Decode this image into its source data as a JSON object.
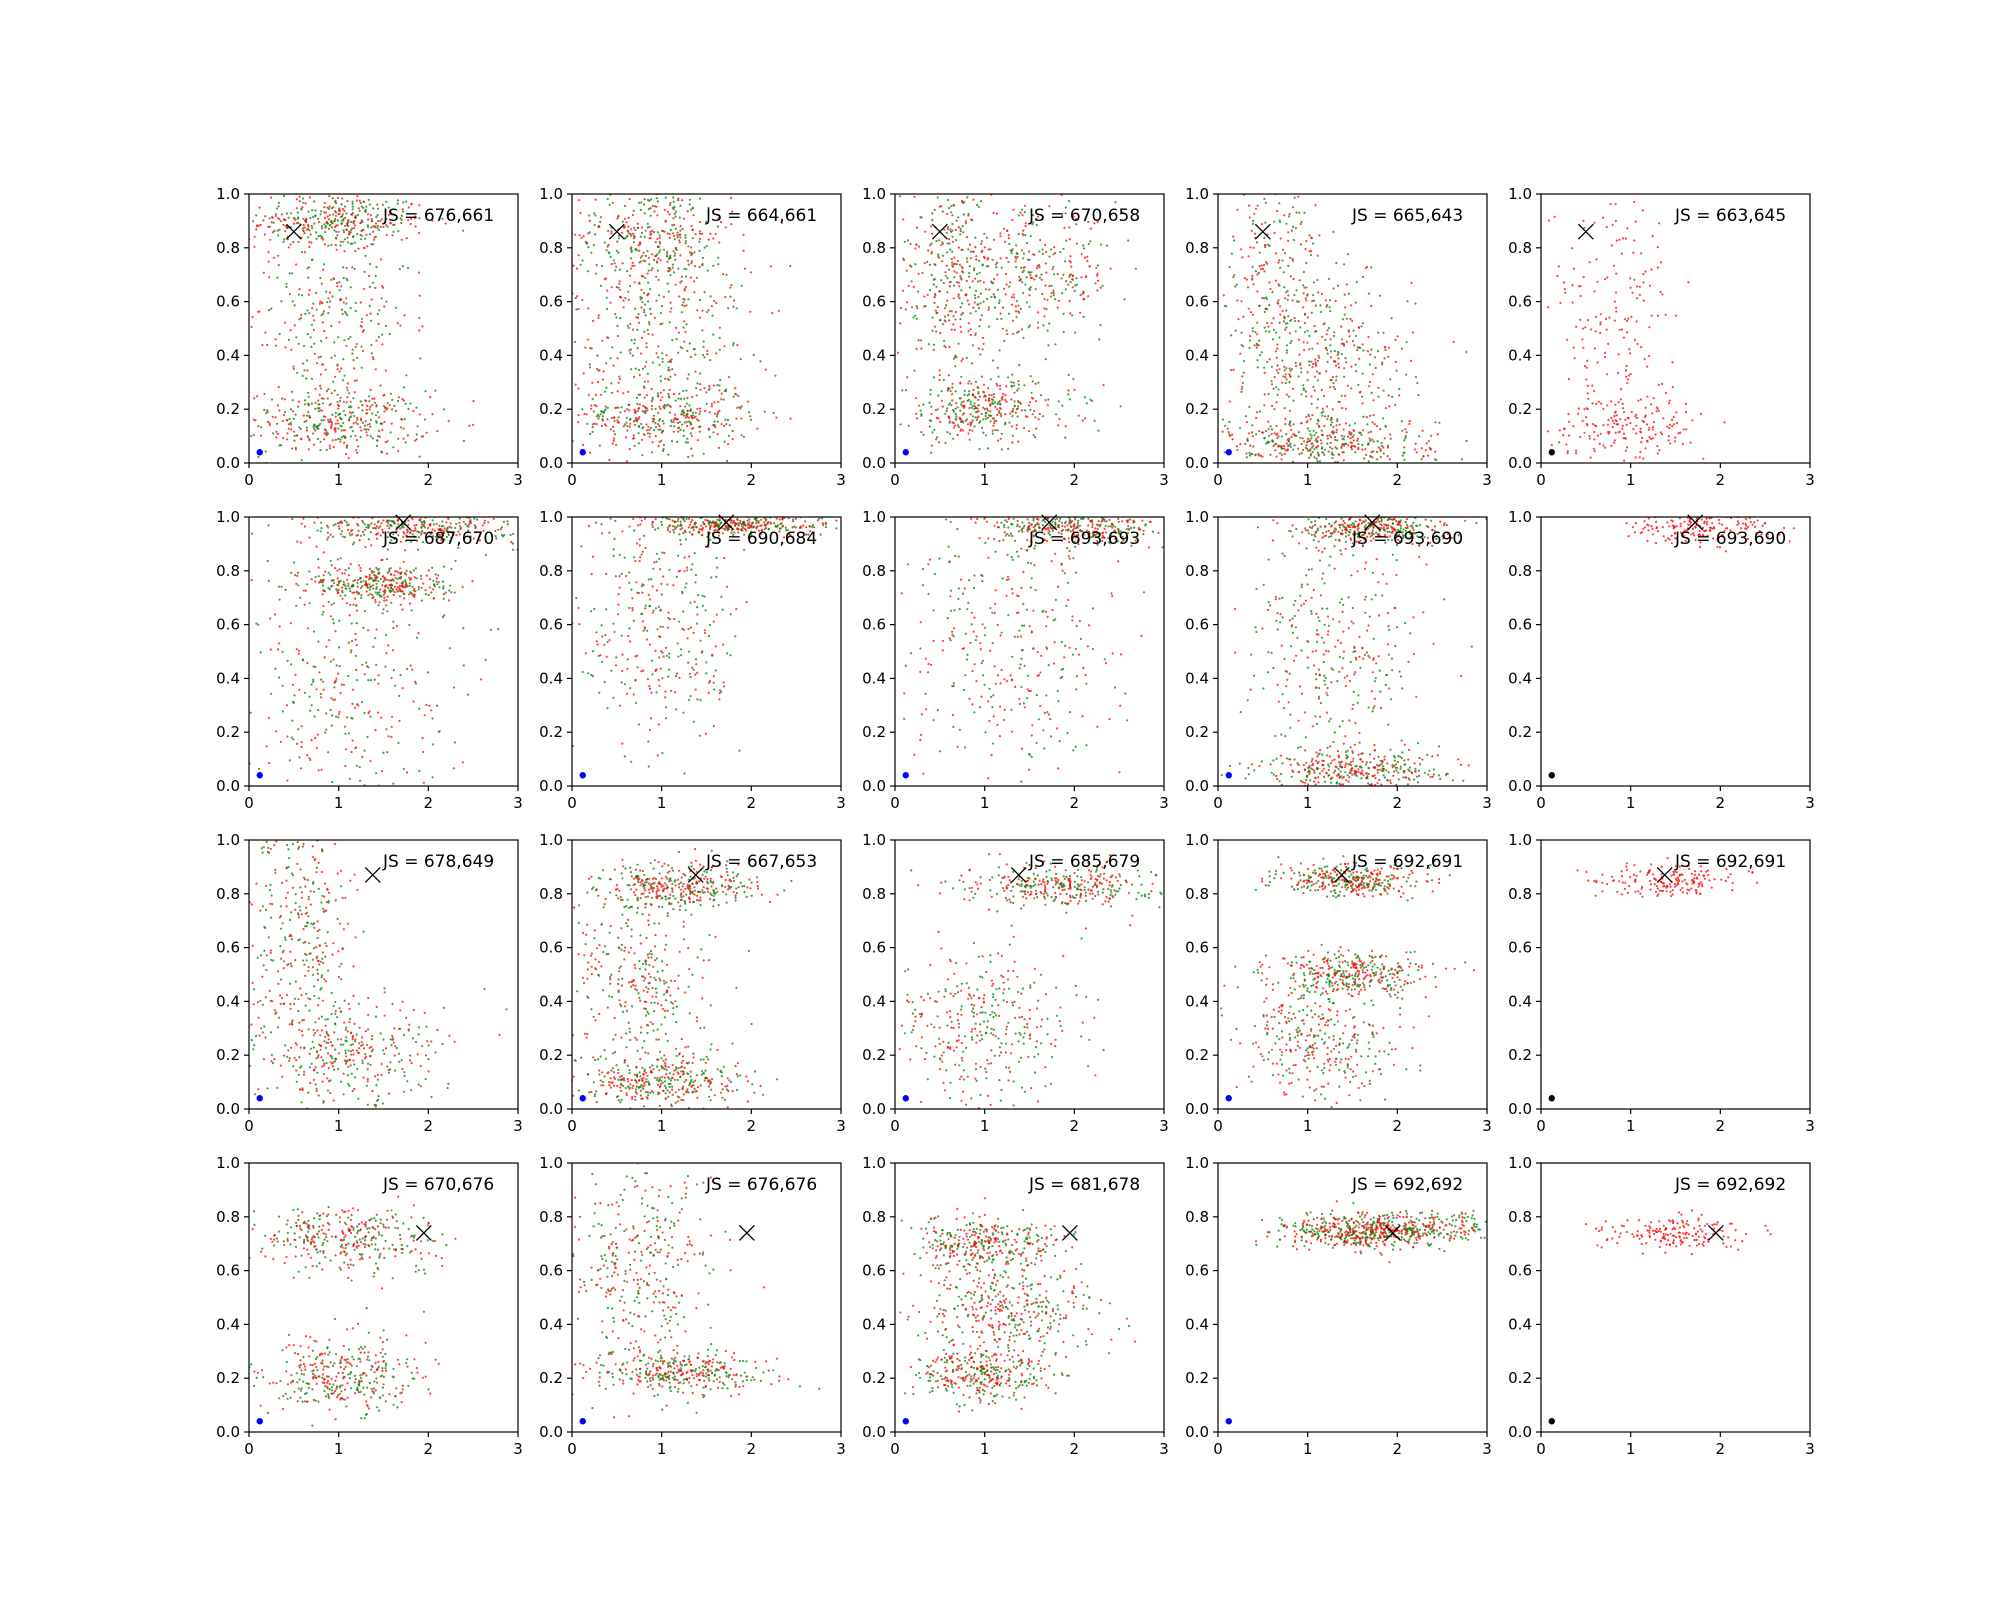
{
  "chart_data": {
    "type": "scatter",
    "layout": {
      "rows": 4,
      "cols": 5
    },
    "shared_axes": {
      "xlim": [
        0,
        3
      ],
      "ylim": [
        0,
        1
      ],
      "xticks": [
        "0",
        "1",
        "2",
        "3"
      ],
      "yticks": [
        "0.0",
        "0.2",
        "0.4",
        "0.6",
        "0.8",
        "1.0"
      ]
    },
    "grid": false,
    "legend": "none",
    "colors": {
      "green": "#008000",
      "red": "#ff0000",
      "blue": "#0000ff",
      "black": "#000000"
    },
    "reference_marker": {
      "symbol": "x",
      "color": "#000000"
    },
    "rows": [
      {
        "target": {
          "x": 0.5,
          "y": 0.86
        },
        "panels": [
          {
            "annotation": "JS = 676,661",
            "green": true,
            "red": true,
            "origin_color": "blue",
            "clusters": [
              {
                "x": 1.0,
                "y": 0.9,
                "sx": 0.5,
                "sy": 0.05
              },
              {
                "x": 1.0,
                "y": 0.15,
                "sx": 0.5,
                "sy": 0.06
              },
              {
                "x": 0.9,
                "y": 0.55,
                "sx": 0.45,
                "sy": 0.25
              }
            ]
          },
          {
            "annotation": "JS = 664,661",
            "green": true,
            "red": true,
            "origin_color": "blue",
            "clusters": [
              {
                "x": 0.9,
                "y": 0.85,
                "sx": 0.45,
                "sy": 0.1
              },
              {
                "x": 1.0,
                "y": 0.17,
                "sx": 0.5,
                "sy": 0.06
              },
              {
                "x": 1.0,
                "y": 0.5,
                "sx": 0.5,
                "sy": 0.2
              }
            ]
          },
          {
            "annotation": "JS = 670,658",
            "green": true,
            "red": true,
            "origin_color": "blue",
            "clusters": [
              {
                "x": 0.6,
                "y": 0.7,
                "sx": 0.3,
                "sy": 0.25
              },
              {
                "x": 1.0,
                "y": 0.2,
                "sx": 0.5,
                "sy": 0.06
              },
              {
                "x": 1.5,
                "y": 0.7,
                "sx": 0.5,
                "sy": 0.12
              }
            ]
          },
          {
            "annotation": "JS = 665,643",
            "green": true,
            "red": true,
            "origin_color": "blue",
            "clusters": [
              {
                "x": 0.6,
                "y": 0.6,
                "sx": 0.3,
                "sy": 0.3
              },
              {
                "x": 1.2,
                "y": 0.07,
                "sx": 0.6,
                "sy": 0.05
              },
              {
                "x": 1.3,
                "y": 0.35,
                "sx": 0.45,
                "sy": 0.18
              }
            ]
          },
          {
            "annotation": "JS = 663,645",
            "green": false,
            "red": true,
            "origin_color": "black",
            "clusters": [
              {
                "x": 0.8,
                "y": 0.55,
                "sx": 0.35,
                "sy": 0.25
              },
              {
                "x": 1.0,
                "y": 0.14,
                "sx": 0.45,
                "sy": 0.06
              }
            ]
          }
        ]
      },
      {
        "target": {
          "x": 1.72,
          "y": 0.98
        },
        "panels": [
          {
            "annotation": "JS = 687,670",
            "green": true,
            "red": true,
            "origin_color": "blue",
            "clusters": [
              {
                "x": 1.8,
                "y": 0.96,
                "sx": 0.6,
                "sy": 0.03
              },
              {
                "x": 1.5,
                "y": 0.75,
                "sx": 0.4,
                "sy": 0.04
              },
              {
                "x": 1.0,
                "y": 0.4,
                "sx": 0.6,
                "sy": 0.25
              }
            ]
          },
          {
            "annotation": "JS = 690,684",
            "green": true,
            "red": true,
            "origin_color": "blue",
            "clusters": [
              {
                "x": 1.8,
                "y": 0.97,
                "sx": 0.55,
                "sy": 0.02
              },
              {
                "x": 1.0,
                "y": 0.6,
                "sx": 0.45,
                "sy": 0.25
              }
            ]
          },
          {
            "annotation": "JS = 693,693",
            "green": true,
            "red": true,
            "origin_color": "blue",
            "clusters": [
              {
                "x": 2.0,
                "y": 0.96,
                "sx": 0.5,
                "sy": 0.03
              },
              {
                "x": 1.3,
                "y": 0.5,
                "sx": 0.6,
                "sy": 0.25
              }
            ]
          },
          {
            "annotation": "JS = 693,690",
            "green": true,
            "red": true,
            "origin_color": "blue",
            "clusters": [
              {
                "x": 1.75,
                "y": 0.96,
                "sx": 0.4,
                "sy": 0.03
              },
              {
                "x": 1.6,
                "y": 0.06,
                "sx": 0.55,
                "sy": 0.04
              },
              {
                "x": 1.3,
                "y": 0.5,
                "sx": 0.5,
                "sy": 0.25
              }
            ]
          },
          {
            "annotation": "JS = 693,690",
            "green": false,
            "red": true,
            "origin_color": "black",
            "clusters": [
              {
                "x": 1.75,
                "y": 0.96,
                "sx": 0.4,
                "sy": 0.03
              }
            ]
          }
        ]
      },
      {
        "target": {
          "x": 1.38,
          "y": 0.87
        },
        "panels": [
          {
            "annotation": "JS = 678,649",
            "green": true,
            "red": true,
            "origin_color": "blue",
            "clusters": [
              {
                "x": 1.1,
                "y": 0.2,
                "sx": 0.55,
                "sy": 0.1
              },
              {
                "x": 0.6,
                "y": 0.65,
                "sx": 0.3,
                "sy": 0.25
              }
            ]
          },
          {
            "annotation": "JS = 667,653",
            "green": true,
            "red": true,
            "origin_color": "blue",
            "clusters": [
              {
                "x": 1.2,
                "y": 0.83,
                "sx": 0.45,
                "sy": 0.04
              },
              {
                "x": 1.0,
                "y": 0.1,
                "sx": 0.45,
                "sy": 0.05
              },
              {
                "x": 0.8,
                "y": 0.45,
                "sx": 0.4,
                "sy": 0.2
              }
            ]
          },
          {
            "annotation": "JS = 685,679",
            "green": true,
            "red": true,
            "origin_color": "blue",
            "clusters": [
              {
                "x": 1.9,
                "y": 0.83,
                "sx": 0.55,
                "sy": 0.04
              },
              {
                "x": 1.0,
                "y": 0.3,
                "sx": 0.5,
                "sy": 0.15
              }
            ]
          },
          {
            "annotation": "JS = 692,691",
            "green": true,
            "red": true,
            "origin_color": "blue",
            "clusters": [
              {
                "x": 1.45,
                "y": 0.85,
                "sx": 0.4,
                "sy": 0.03
              },
              {
                "x": 1.5,
                "y": 0.5,
                "sx": 0.45,
                "sy": 0.04
              },
              {
                "x": 1.1,
                "y": 0.25,
                "sx": 0.45,
                "sy": 0.12
              }
            ]
          },
          {
            "annotation": "JS = 692,691",
            "green": false,
            "red": true,
            "origin_color": "black",
            "clusters": [
              {
                "x": 1.45,
                "y": 0.85,
                "sx": 0.4,
                "sy": 0.03
              }
            ]
          }
        ]
      },
      {
        "target": {
          "x": 1.95,
          "y": 0.74
        },
        "panels": [
          {
            "annotation": "JS = 670,676",
            "green": true,
            "red": true,
            "origin_color": "blue",
            "clusters": [
              {
                "x": 1.1,
                "y": 0.72,
                "sx": 0.5,
                "sy": 0.06
              },
              {
                "x": 1.0,
                "y": 0.2,
                "sx": 0.45,
                "sy": 0.08
              }
            ]
          },
          {
            "annotation": "JS = 676,676",
            "green": true,
            "red": true,
            "origin_color": "blue",
            "clusters": [
              {
                "x": 1.2,
                "y": 0.22,
                "sx": 0.5,
                "sy": 0.04
              },
              {
                "x": 0.8,
                "y": 0.6,
                "sx": 0.4,
                "sy": 0.2
              }
            ]
          },
          {
            "annotation": "JS = 681,678",
            "green": true,
            "red": true,
            "origin_color": "blue",
            "clusters": [
              {
                "x": 1.0,
                "y": 0.7,
                "sx": 0.45,
                "sy": 0.05
              },
              {
                "x": 1.3,
                "y": 0.45,
                "sx": 0.5,
                "sy": 0.08
              },
              {
                "x": 1.0,
                "y": 0.22,
                "sx": 0.4,
                "sy": 0.05
              }
            ]
          },
          {
            "annotation": "JS = 692,692",
            "green": true,
            "red": true,
            "origin_color": "blue",
            "clusters": [
              {
                "x": 2.1,
                "y": 0.76,
                "sx": 0.6,
                "sy": 0.03
              },
              {
                "x": 1.5,
                "y": 0.74,
                "sx": 0.4,
                "sy": 0.03
              }
            ]
          },
          {
            "annotation": "JS = 692,692",
            "green": false,
            "red": true,
            "origin_color": "black",
            "clusters": [
              {
                "x": 1.5,
                "y": 0.74,
                "sx": 0.4,
                "sy": 0.03
              }
            ]
          }
        ]
      }
    ]
  }
}
